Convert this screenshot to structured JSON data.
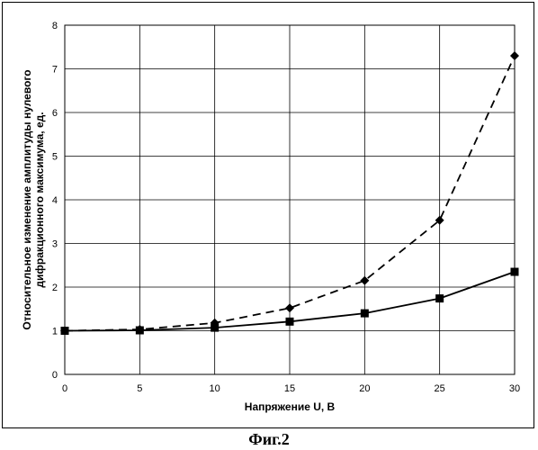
{
  "chart_data": {
    "type": "line",
    "xlabel": "Напряжение U, В",
    "ylabel_lines": [
      "Относительное изменение амплитуды нулевого",
      "дифракционного максимума, ед."
    ],
    "xlim": [
      0,
      30
    ],
    "ylim": [
      0,
      8
    ],
    "x_ticks": [
      "0",
      "5",
      "10",
      "15",
      "20",
      "25",
      "30"
    ],
    "y_ticks": [
      "0",
      "1",
      "2",
      "3",
      "4",
      "5",
      "6",
      "7",
      "8"
    ],
    "grid": true,
    "x": [
      0,
      5,
      10,
      15,
      20,
      25,
      30
    ],
    "series": [
      {
        "marker": "diamond",
        "line_style": "dashed",
        "color": "#000000",
        "values": [
          1.0,
          1.03,
          1.18,
          1.52,
          2.15,
          3.53,
          7.3
        ]
      },
      {
        "marker": "square",
        "line_style": "solid",
        "color": "#000000",
        "values": [
          1.0,
          1.01,
          1.07,
          1.21,
          1.4,
          1.74,
          2.35
        ]
      }
    ]
  },
  "figure": {
    "caption": "Фиг.2"
  }
}
